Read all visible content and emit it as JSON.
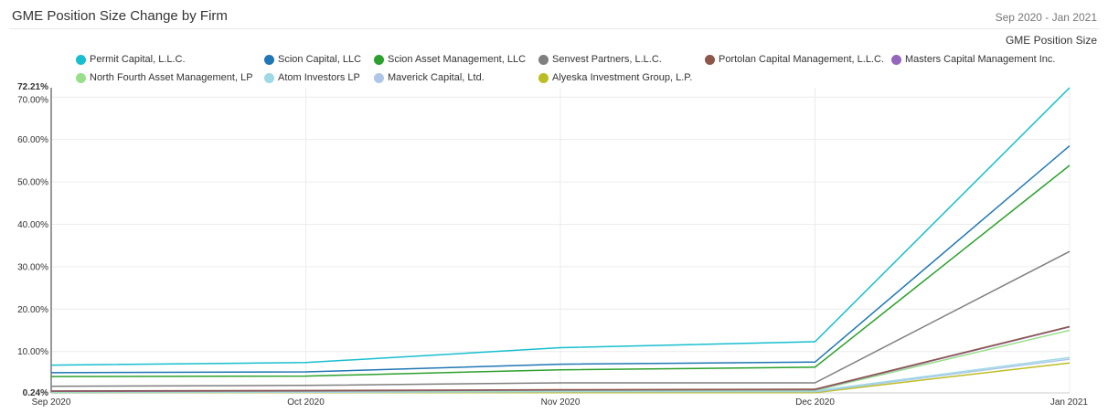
{
  "header": {
    "title": "GME Position Size Change by Firm",
    "date_range": "Sep 2020 - Jan 2021",
    "metric_label": "GME Position Size"
  },
  "chart_data": {
    "type": "line",
    "title": "GME Position Size Change by Firm",
    "xlabel": "",
    "ylabel": "",
    "categories": [
      "Sep 2020",
      "Oct 2020",
      "Nov 2020",
      "Dec 2020",
      "Jan 2021"
    ],
    "y_ticks": [
      "0.24%",
      "10.00%",
      "20.00%",
      "30.00%",
      "40.00%",
      "50.00%",
      "60.00%",
      "70.00%",
      "72.21%"
    ],
    "ylim": [
      0.24,
      72.21
    ],
    "grid": true,
    "legend_position": "top",
    "series": [
      {
        "name": "Permit Capital, L.L.C.",
        "color": "#17becf",
        "values": [
          6.8,
          7.4,
          10.9,
          12.3,
          72.21
        ]
      },
      {
        "name": "Scion Capital, LLC",
        "color": "#1f77b4",
        "values": [
          5.0,
          5.2,
          7.0,
          7.5,
          58.5
        ]
      },
      {
        "name": "Scion Asset Management, LLC",
        "color": "#2ca02c",
        "values": [
          4.1,
          4.2,
          5.7,
          6.3,
          53.9
        ]
      },
      {
        "name": "Senvest Partners, L.L.C.",
        "color": "#7f7f7f",
        "values": [
          1.8,
          2.0,
          2.6,
          2.6,
          33.6
        ]
      },
      {
        "name": "Portolan Capital Management, L.L.C.",
        "color": "#8c564b",
        "values": [
          0.7,
          0.8,
          1.0,
          1.1,
          15.9
        ]
      },
      {
        "name": "Masters Capital Management Inc.",
        "color": "#9467bd",
        "values": [
          0.6,
          0.7,
          0.9,
          1.0,
          15.8
        ]
      },
      {
        "name": "North Fourth Asset Management, LP",
        "color": "#98df8a",
        "values": [
          0.5,
          0.6,
          0.8,
          0.8,
          15.0
        ]
      },
      {
        "name": "Atom Investors LP",
        "color": "#9edae5",
        "values": [
          0.4,
          0.5,
          0.6,
          0.7,
          8.6
        ]
      },
      {
        "name": "Maverick Capital, Ltd.",
        "color": "#aec7e8",
        "values": [
          0.3,
          0.4,
          0.5,
          0.5,
          8.2
        ]
      },
      {
        "name": "Alyeska Investment Group, L.P.",
        "color": "#bcbd22",
        "values": [
          0.24,
          0.3,
          0.3,
          0.3,
          7.3
        ]
      }
    ]
  }
}
